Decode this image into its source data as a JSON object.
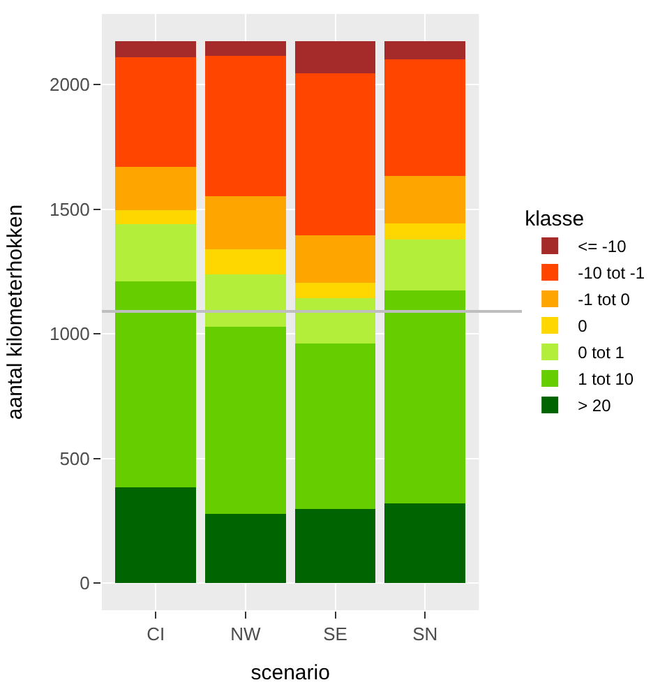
{
  "chart_data": {
    "type": "bar",
    "stacked": true,
    "xlabel": "scenario",
    "ylabel": "aantal kilometerhokken",
    "legend_title": "klasse",
    "categories": [
      "CI",
      "NW",
      "SE",
      "SN"
    ],
    "series": [
      {
        "name": "> 20",
        "color": "#006400",
        "values": [
          383,
          277,
          298,
          320
        ]
      },
      {
        "name": "1 tot 10",
        "color": "#66cd00",
        "values": [
          827,
          753,
          663,
          853
        ]
      },
      {
        "name": "0 tot 1",
        "color": "#b3ee3a",
        "values": [
          230,
          208,
          182,
          207
        ]
      },
      {
        "name": "0",
        "color": "#ffd700",
        "values": [
          56,
          101,
          62,
          63
        ]
      },
      {
        "name": "-1 tot 0",
        "color": "#ffa500",
        "values": [
          175,
          215,
          192,
          191
        ]
      },
      {
        "name": "-10 tot -1",
        "color": "#ff4500",
        "values": [
          440,
          562,
          650,
          467
        ]
      },
      {
        "name": "<= -10",
        "color": "#a52a2a",
        "values": [
          64,
          59,
          128,
          74
        ]
      }
    ],
    "ylim": [
      -109,
      2284
    ],
    "yticks": [
      0,
      500,
      1000,
      1500,
      2000
    ],
    "grid": true,
    "legend": "right",
    "ref_lines": [
      {
        "axis": "y",
        "value": 1090,
        "color": "#bebebe"
      }
    ]
  }
}
